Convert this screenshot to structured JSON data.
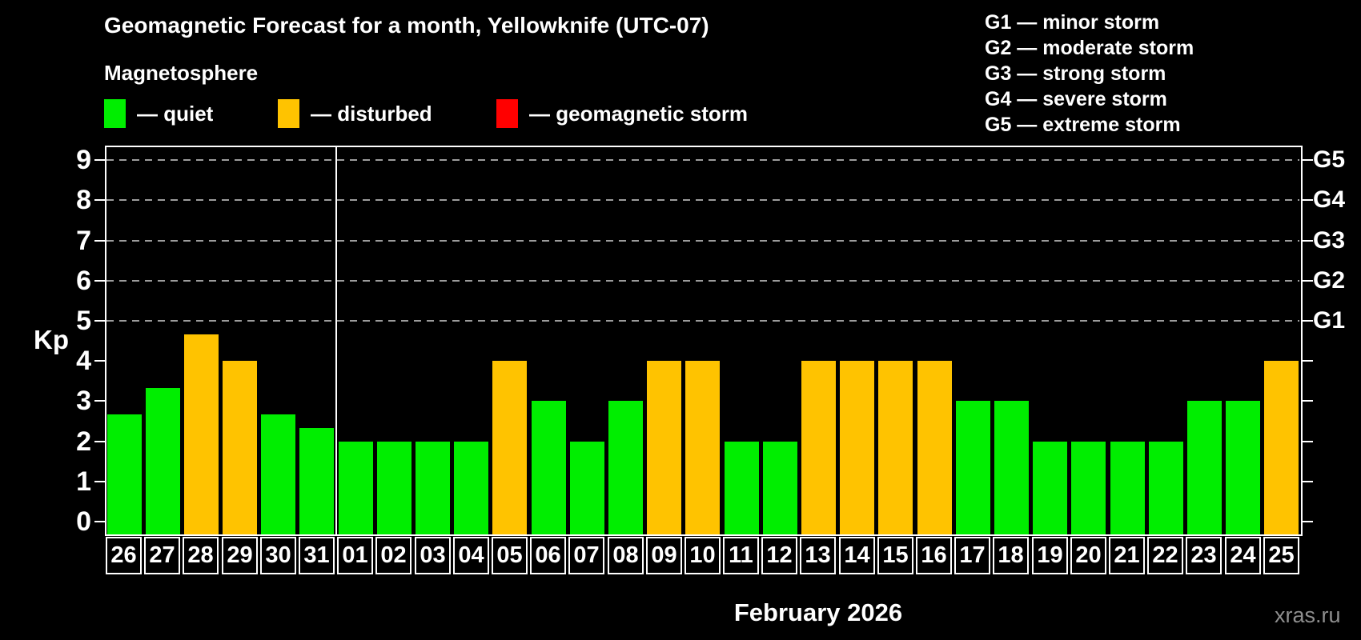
{
  "title": "Geomagnetic Forecast for a month, Yellowknife (UTC-07)",
  "subtitle": "Magnetosphere",
  "colors": {
    "quiet": "#00ee00",
    "disturbed": "#ffc300",
    "storm": "#ff0000",
    "gridline": "#9c9c9c",
    "axis": "#ffffff",
    "background": "#000000",
    "watermark_text": "#8f8f8f"
  },
  "legend": {
    "items": [
      {
        "status": "quiet",
        "label": "— quiet",
        "color": "#00ee00"
      },
      {
        "status": "disturbed",
        "label": "— disturbed",
        "color": "#ffc300"
      },
      {
        "status": "storm",
        "label": "— geomagnetic storm",
        "color": "#ff0000"
      }
    ]
  },
  "g_legend": [
    "G1 — minor storm",
    "G2 — moderate storm",
    "G3 — strong storm",
    "G4 — severe storm",
    "G5 — extreme storm"
  ],
  "watermark": "xras.ru",
  "chart_data": {
    "type": "bar",
    "title": "Geomagnetic Forecast for a month, Yellowknife (UTC-07)",
    "xlabel": "February 2026",
    "ylabel": "Kp",
    "ylim": [
      0,
      9
    ],
    "yticks": [
      0,
      1,
      2,
      3,
      4,
      5,
      6,
      7,
      8,
      9
    ],
    "gridlines_kp": [
      5,
      6,
      7,
      8,
      9
    ],
    "grid": "dashed horizontal at Kp 5-9",
    "legend_position": "top",
    "g_scale": [
      {
        "kp": 9,
        "label": "G5"
      },
      {
        "kp": 8,
        "label": "G4"
      },
      {
        "kp": 7,
        "label": "G3"
      },
      {
        "kp": 6,
        "label": "G2"
      },
      {
        "kp": 5,
        "label": "G1"
      }
    ],
    "month_separator_after_index": 5,
    "bars": [
      {
        "day": "26",
        "kp": 2.67,
        "status": "quiet"
      },
      {
        "day": "27",
        "kp": 3.33,
        "status": "quiet"
      },
      {
        "day": "28",
        "kp": 4.67,
        "status": "disturbed"
      },
      {
        "day": "29",
        "kp": 4.0,
        "status": "disturbed"
      },
      {
        "day": "30",
        "kp": 2.67,
        "status": "quiet"
      },
      {
        "day": "31",
        "kp": 2.33,
        "status": "quiet"
      },
      {
        "day": "01",
        "kp": 2.0,
        "status": "quiet"
      },
      {
        "day": "02",
        "kp": 2.0,
        "status": "quiet"
      },
      {
        "day": "03",
        "kp": 2.0,
        "status": "quiet"
      },
      {
        "day": "04",
        "kp": 2.0,
        "status": "quiet"
      },
      {
        "day": "05",
        "kp": 4.0,
        "status": "disturbed"
      },
      {
        "day": "06",
        "kp": 3.0,
        "status": "quiet"
      },
      {
        "day": "07",
        "kp": 2.0,
        "status": "quiet"
      },
      {
        "day": "08",
        "kp": 3.0,
        "status": "quiet"
      },
      {
        "day": "09",
        "kp": 4.0,
        "status": "disturbed"
      },
      {
        "day": "10",
        "kp": 4.0,
        "status": "disturbed"
      },
      {
        "day": "11",
        "kp": 2.0,
        "status": "quiet"
      },
      {
        "day": "12",
        "kp": 2.0,
        "status": "quiet"
      },
      {
        "day": "13",
        "kp": 4.0,
        "status": "disturbed"
      },
      {
        "day": "14",
        "kp": 4.0,
        "status": "disturbed"
      },
      {
        "day": "15",
        "kp": 4.0,
        "status": "disturbed"
      },
      {
        "day": "16",
        "kp": 4.0,
        "status": "disturbed"
      },
      {
        "day": "17",
        "kp": 3.0,
        "status": "quiet"
      },
      {
        "day": "18",
        "kp": 3.0,
        "status": "quiet"
      },
      {
        "day": "19",
        "kp": 2.0,
        "status": "quiet"
      },
      {
        "day": "20",
        "kp": 2.0,
        "status": "quiet"
      },
      {
        "day": "21",
        "kp": 2.0,
        "status": "quiet"
      },
      {
        "day": "22",
        "kp": 2.0,
        "status": "quiet"
      },
      {
        "day": "23",
        "kp": 3.0,
        "status": "quiet"
      },
      {
        "day": "24",
        "kp": 3.0,
        "status": "quiet"
      },
      {
        "day": "25",
        "kp": 4.0,
        "status": "disturbed"
      }
    ]
  }
}
